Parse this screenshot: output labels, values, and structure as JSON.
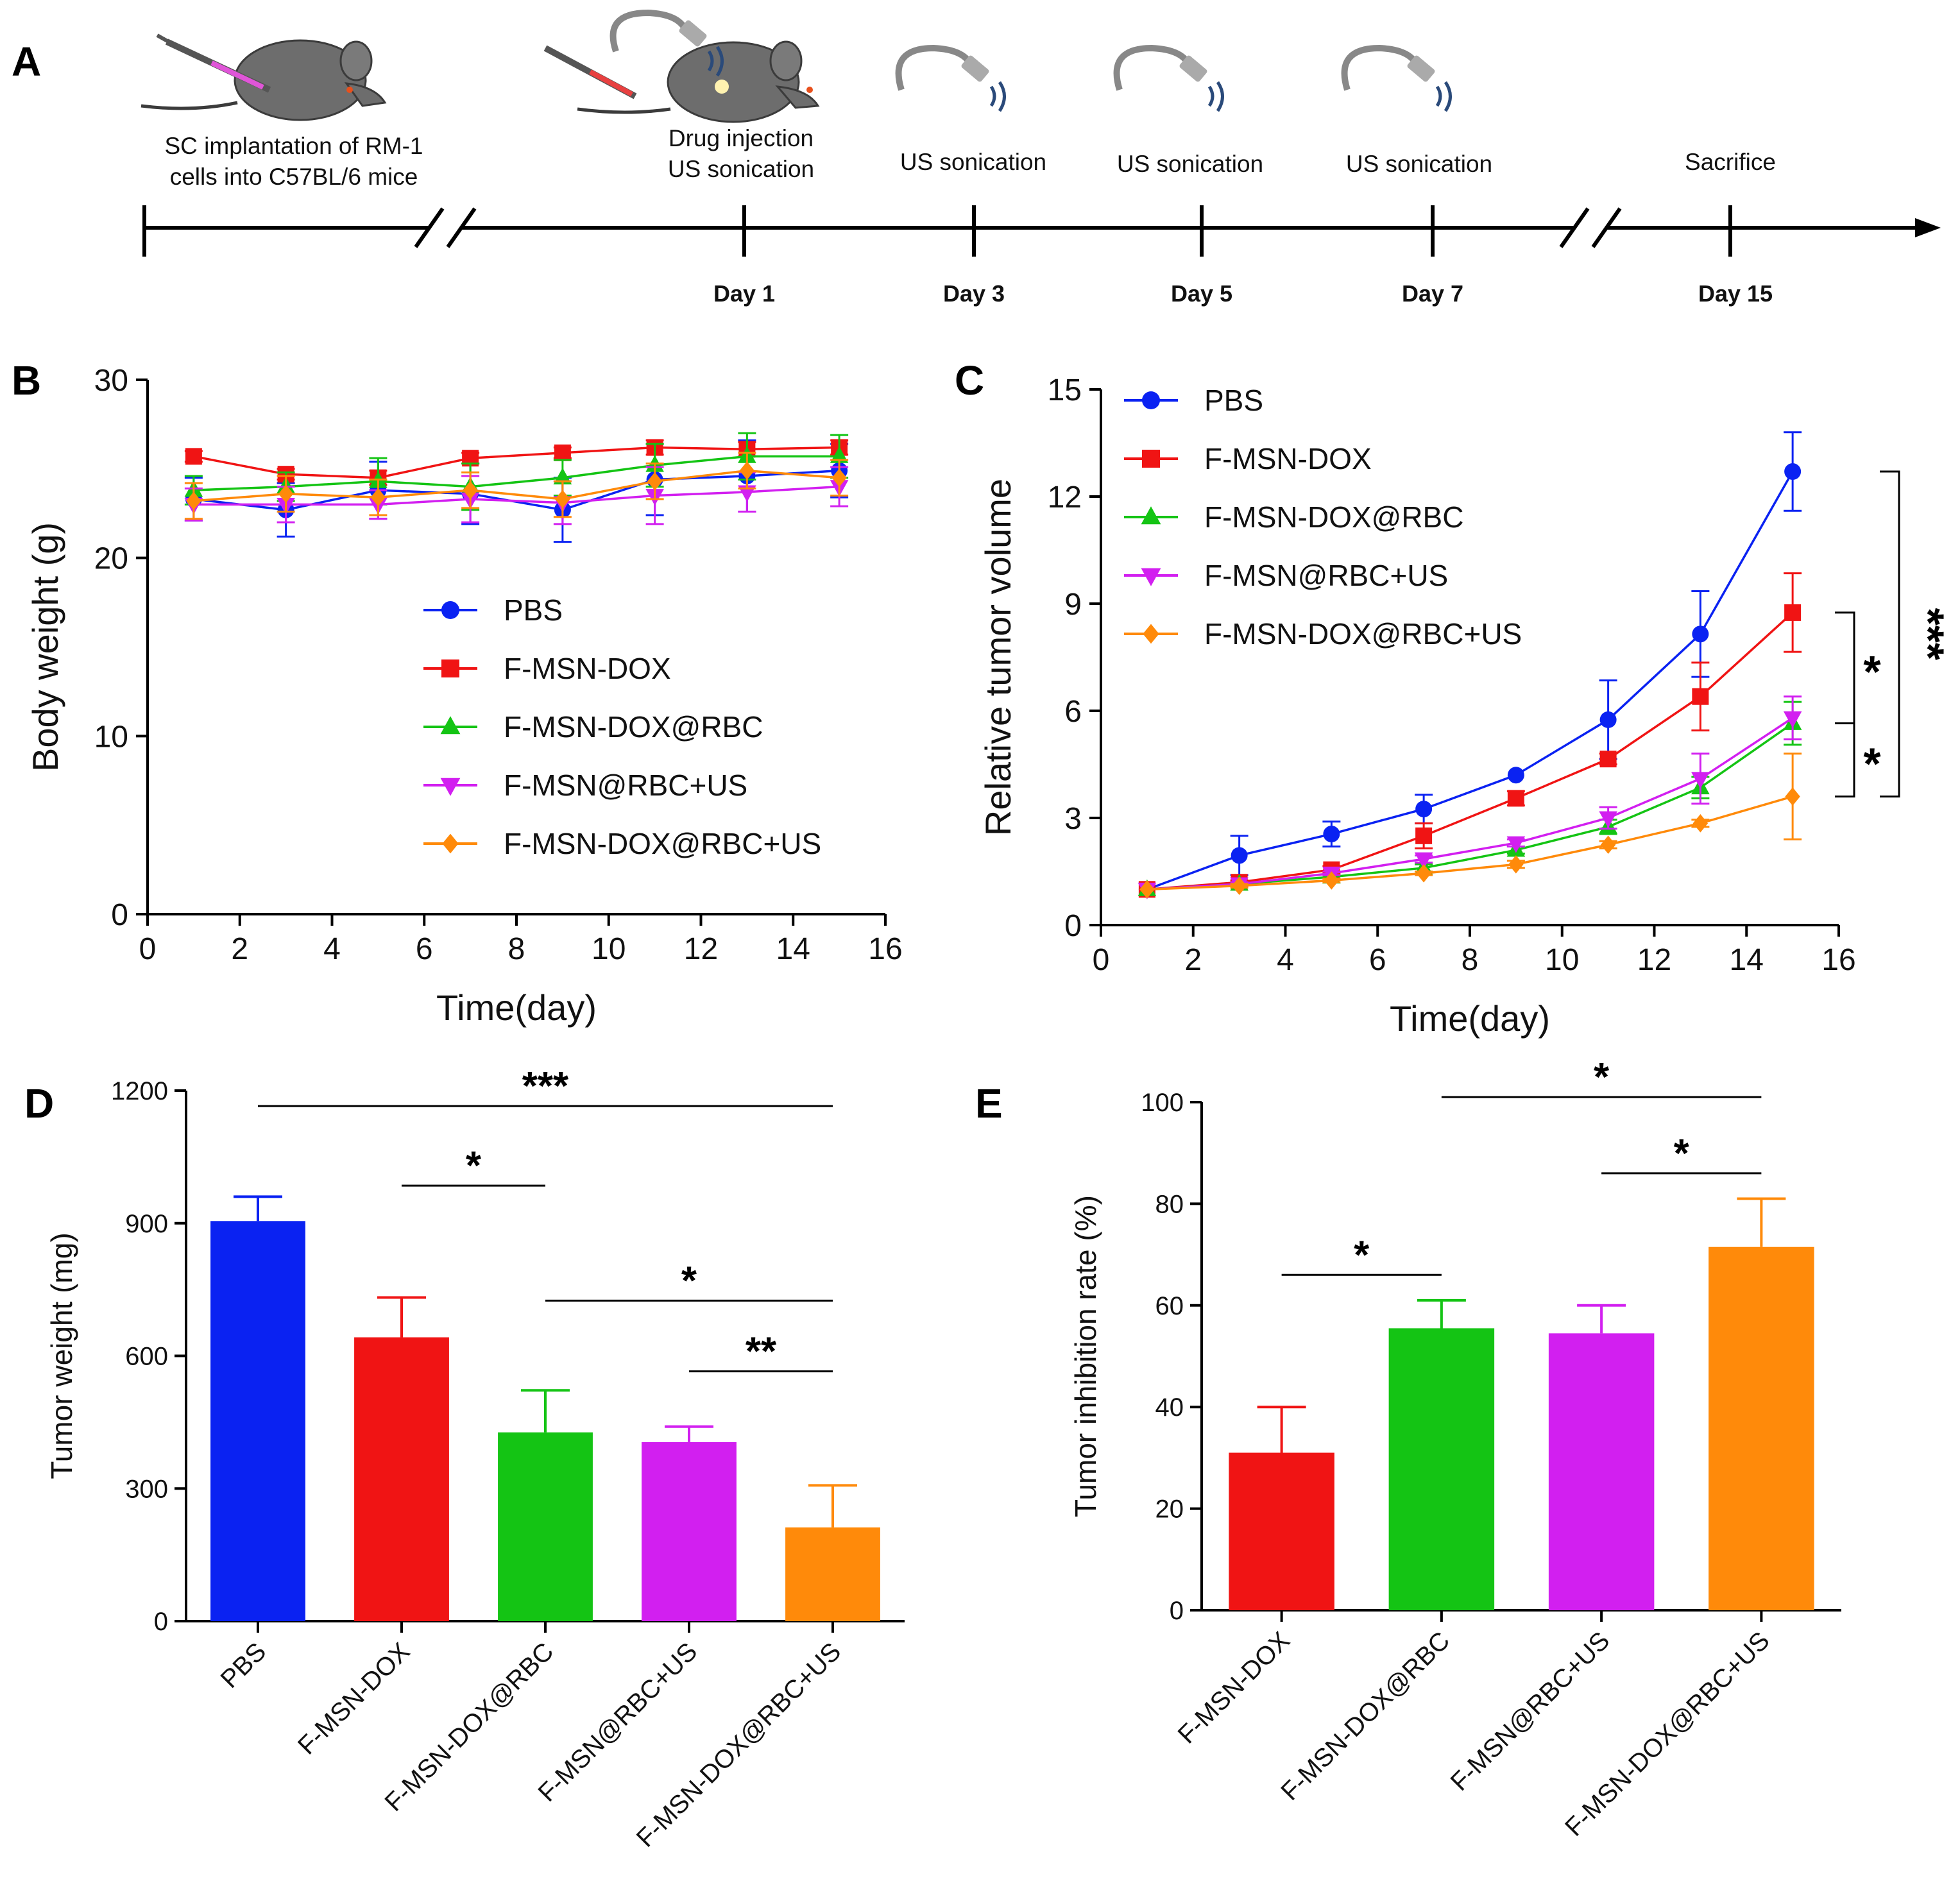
{
  "panels": {
    "A": "A",
    "B": "B",
    "C": "C",
    "D": "D",
    "E": "E"
  },
  "colors": {
    "PBS": "#0a22f2",
    "F-MSN-DOX": "#f01414",
    "F-MSN-DOX@RBC": "#14c414",
    "F-MSN@RBC+US": "#d21ff0",
    "F-MSN-DOX@RBC+US": "#ff8a0a"
  },
  "timeline": {
    "events": [
      {
        "text1": "SC implantation of RM-1",
        "text2": "cells into C57BL/6 mice"
      },
      {
        "text1": "Drug injection",
        "text2": "US sonication"
      },
      {
        "text1": "US sonication",
        "text2": ""
      },
      {
        "text1": "US sonication",
        "text2": ""
      },
      {
        "text1": "US sonication",
        "text2": ""
      },
      {
        "text1": "Sacrifice",
        "text2": ""
      }
    ],
    "days": [
      "Day 1",
      "Day 3",
      "Day 5",
      "Day 7",
      "Day 15"
    ]
  },
  "chart_data": [
    {
      "panel": "B",
      "type": "line",
      "title": "",
      "xlabel": "Time(day)",
      "ylabel": "Body weight (g)",
      "xlim": [
        0,
        16
      ],
      "ylim": [
        0,
        30
      ],
      "xticks": [
        "0",
        "2",
        "4",
        "6",
        "8",
        "10",
        "12",
        "14",
        "16"
      ],
      "yticks": [
        "0",
        "10",
        "20",
        "30"
      ],
      "x": [
        1,
        3,
        5,
        7,
        9,
        11,
        13,
        15
      ],
      "legend_position": "center-right",
      "series": [
        {
          "name": "PBS",
          "marker": "circle",
          "values": [
            23.3,
            22.7,
            23.8,
            23.6,
            22.7,
            24.4,
            24.6,
            24.9
          ],
          "errors": [
            1.2,
            1.5,
            1.6,
            1.7,
            1.8,
            2.0,
            2.0,
            1.5
          ]
        },
        {
          "name": "F-MSN-DOX",
          "marker": "square",
          "values": [
            25.7,
            24.7,
            24.5,
            25.6,
            25.9,
            26.2,
            26.1,
            26.2
          ],
          "errors": [
            0.3,
            0.3,
            0.4,
            0.3,
            0.3,
            0.4,
            0.4,
            0.4
          ]
        },
        {
          "name": "F-MSN-DOX@RBC",
          "marker": "triangle-up",
          "values": [
            23.8,
            24.0,
            24.3,
            24.0,
            24.5,
            25.2,
            25.7,
            25.7
          ],
          "errors": [
            0.8,
            0.8,
            1.3,
            1.3,
            1.0,
            1.2,
            1.3,
            1.2
          ]
        },
        {
          "name": "F-MSN@RBC+US",
          "marker": "triangle-down",
          "values": [
            23.0,
            23.0,
            23.0,
            23.3,
            23.1,
            23.5,
            23.7,
            24.0
          ],
          "errors": [
            0.9,
            1.0,
            0.8,
            1.3,
            1.2,
            1.6,
            1.1,
            1.1
          ]
        },
        {
          "name": "F-MSN-DOX@RBC+US",
          "marker": "diamond",
          "values": [
            23.2,
            23.6,
            23.4,
            23.8,
            23.3,
            24.3,
            24.9,
            24.5
          ],
          "errors": [
            1.0,
            1.0,
            1.0,
            1.0,
            1.0,
            1.0,
            1.0,
            1.0
          ]
        }
      ]
    },
    {
      "panel": "C",
      "type": "line",
      "title": "",
      "xlabel": "Time(day)",
      "ylabel": "Relative tumor volume",
      "xlim": [
        0,
        16
      ],
      "ylim": [
        0,
        15
      ],
      "xticks": [
        "0",
        "2",
        "4",
        "6",
        "8",
        "10",
        "12",
        "14",
        "16"
      ],
      "yticks": [
        "0",
        "3",
        "6",
        "9",
        "12",
        "15"
      ],
      "x": [
        1,
        3,
        5,
        7,
        9,
        11,
        13,
        15
      ],
      "legend_position": "top-left",
      "series": [
        {
          "name": "PBS",
          "marker": "circle",
          "values": [
            1.0,
            1.95,
            2.55,
            3.25,
            4.2,
            5.75,
            8.15,
            12.7
          ],
          "errors": [
            0,
            0.55,
            0.35,
            0.4,
            0.0,
            1.1,
            1.2,
            1.1
          ]
        },
        {
          "name": "F-MSN-DOX",
          "marker": "square",
          "values": [
            1.0,
            1.2,
            1.55,
            2.5,
            3.55,
            4.65,
            6.4,
            8.75
          ],
          "errors": [
            0,
            0.05,
            0.1,
            0.35,
            0.2,
            0.15,
            0.95,
            1.1
          ]
        },
        {
          "name": "F-MSN-DOX@RBC",
          "marker": "triangle-up",
          "values": [
            1.0,
            1.15,
            1.35,
            1.6,
            2.1,
            2.75,
            3.85,
            5.65
          ],
          "errors": [
            0,
            0.05,
            0.05,
            0.1,
            0.1,
            0.2,
            0.3,
            0.6
          ]
        },
        {
          "name": "F-MSN@RBC+US",
          "marker": "triangle-down",
          "values": [
            1.0,
            1.15,
            1.45,
            1.85,
            2.3,
            3.0,
            4.1,
            5.8
          ],
          "errors": [
            0,
            0.05,
            0.05,
            0.1,
            0.1,
            0.3,
            0.7,
            0.6
          ]
        },
        {
          "name": "F-MSN-DOX@RBC+US",
          "marker": "diamond",
          "values": [
            1.0,
            1.1,
            1.25,
            1.45,
            1.7,
            2.25,
            2.85,
            3.6
          ],
          "errors": [
            0,
            0.05,
            0.05,
            0.05,
            0.1,
            0.1,
            0.1,
            1.2
          ]
        }
      ],
      "significance": [
        {
          "label": "*",
          "between": [
            "F-MSN-DOX",
            "F-MSN-DOX@RBC"
          ]
        },
        {
          "label": "*",
          "between": [
            "F-MSN-DOX@RBC",
            "F-MSN-DOX@RBC+US"
          ]
        },
        {
          "label": "***",
          "between": [
            "PBS",
            "F-MSN-DOX@RBC+US"
          ]
        }
      ]
    },
    {
      "panel": "D",
      "type": "bar",
      "title": "",
      "xlabel": "",
      "ylabel": "Tumor weight (mg)",
      "ylim": [
        0,
        1200
      ],
      "yticks": [
        "0",
        "300",
        "600",
        "900",
        "1200"
      ],
      "categories": [
        "PBS",
        "F-MSN-DOX",
        "F-MSN-DOX@RBC",
        "F-MSN@RBC+US",
        "F-MSN-DOX@RBC+US"
      ],
      "values": [
        905,
        642,
        427,
        405,
        212
      ],
      "errors": [
        55,
        90,
        95,
        35,
        95
      ],
      "significance": [
        {
          "label": "***",
          "from": 0,
          "to": 4,
          "level": 1165
        },
        {
          "label": "*",
          "from": 1,
          "to": 2,
          "level": 985
        },
        {
          "label": "*",
          "from": 2,
          "to": 4,
          "level": 725
        },
        {
          "label": "**",
          "from": 3,
          "to": 4,
          "level": 565
        }
      ]
    },
    {
      "panel": "E",
      "type": "bar",
      "title": "",
      "xlabel": "",
      "ylabel": "Tumor inhibition rate (%)",
      "ylim": [
        0,
        100
      ],
      "yticks": [
        "0",
        "20",
        "40",
        "60",
        "80",
        "100"
      ],
      "categories": [
        "F-MSN-DOX",
        "F-MSN-DOX@RBC",
        "F-MSN@RBC+US",
        "F-MSN-DOX@RBC+US"
      ],
      "values": [
        31,
        55.5,
        54.5,
        71.5
      ],
      "errors": [
        9,
        5.5,
        5.5,
        9.5
      ],
      "significance": [
        {
          "label": "*",
          "from": 1,
          "to": 3,
          "level": 101
        },
        {
          "label": "*",
          "from": 2,
          "to": 3,
          "level": 86
        },
        {
          "label": "*",
          "from": 0,
          "to": 1,
          "level": 66
        }
      ]
    }
  ]
}
